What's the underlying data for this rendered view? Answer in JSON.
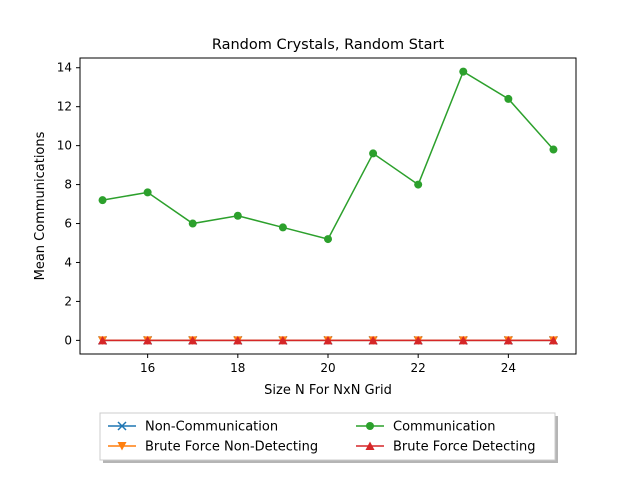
{
  "chart_data": {
    "type": "line",
    "title": "Random Crystals, Random Start",
    "xlabel": "Size N For NxN Grid",
    "ylabel": "Mean Communications",
    "xlim": [
      14.5,
      25.5
    ],
    "ylim": [
      -0.7,
      14.5
    ],
    "xticks": [
      16,
      18,
      20,
      22,
      24
    ],
    "yticks": [
      0,
      2,
      4,
      6,
      8,
      10,
      12,
      14
    ],
    "x": [
      15,
      16,
      17,
      18,
      19,
      20,
      21,
      22,
      23,
      24,
      25
    ],
    "grid": false,
    "legend_position": "below",
    "series": [
      {
        "name": "Non-Communication",
        "color": "#1f77b4",
        "marker": "x",
        "values": [
          0,
          0,
          0,
          0,
          0,
          0,
          0,
          0,
          0,
          0,
          0
        ]
      },
      {
        "name": "Communication",
        "color": "#2ca02c",
        "marker": "circle",
        "values": [
          7.2,
          7.6,
          6.0,
          6.4,
          5.8,
          5.2,
          9.6,
          8.0,
          13.8,
          12.4,
          9.8
        ]
      },
      {
        "name": "Brute Force Non-Detecting",
        "color": "#ff7f0e",
        "marker": "triangle-down",
        "values": [
          0,
          0,
          0,
          0,
          0,
          0,
          0,
          0,
          0,
          0,
          0
        ]
      },
      {
        "name": "Brute Force Detecting",
        "color": "#d62728",
        "marker": "triangle-up",
        "values": [
          0,
          0,
          0,
          0,
          0,
          0,
          0,
          0,
          0,
          0,
          0
        ]
      }
    ]
  }
}
